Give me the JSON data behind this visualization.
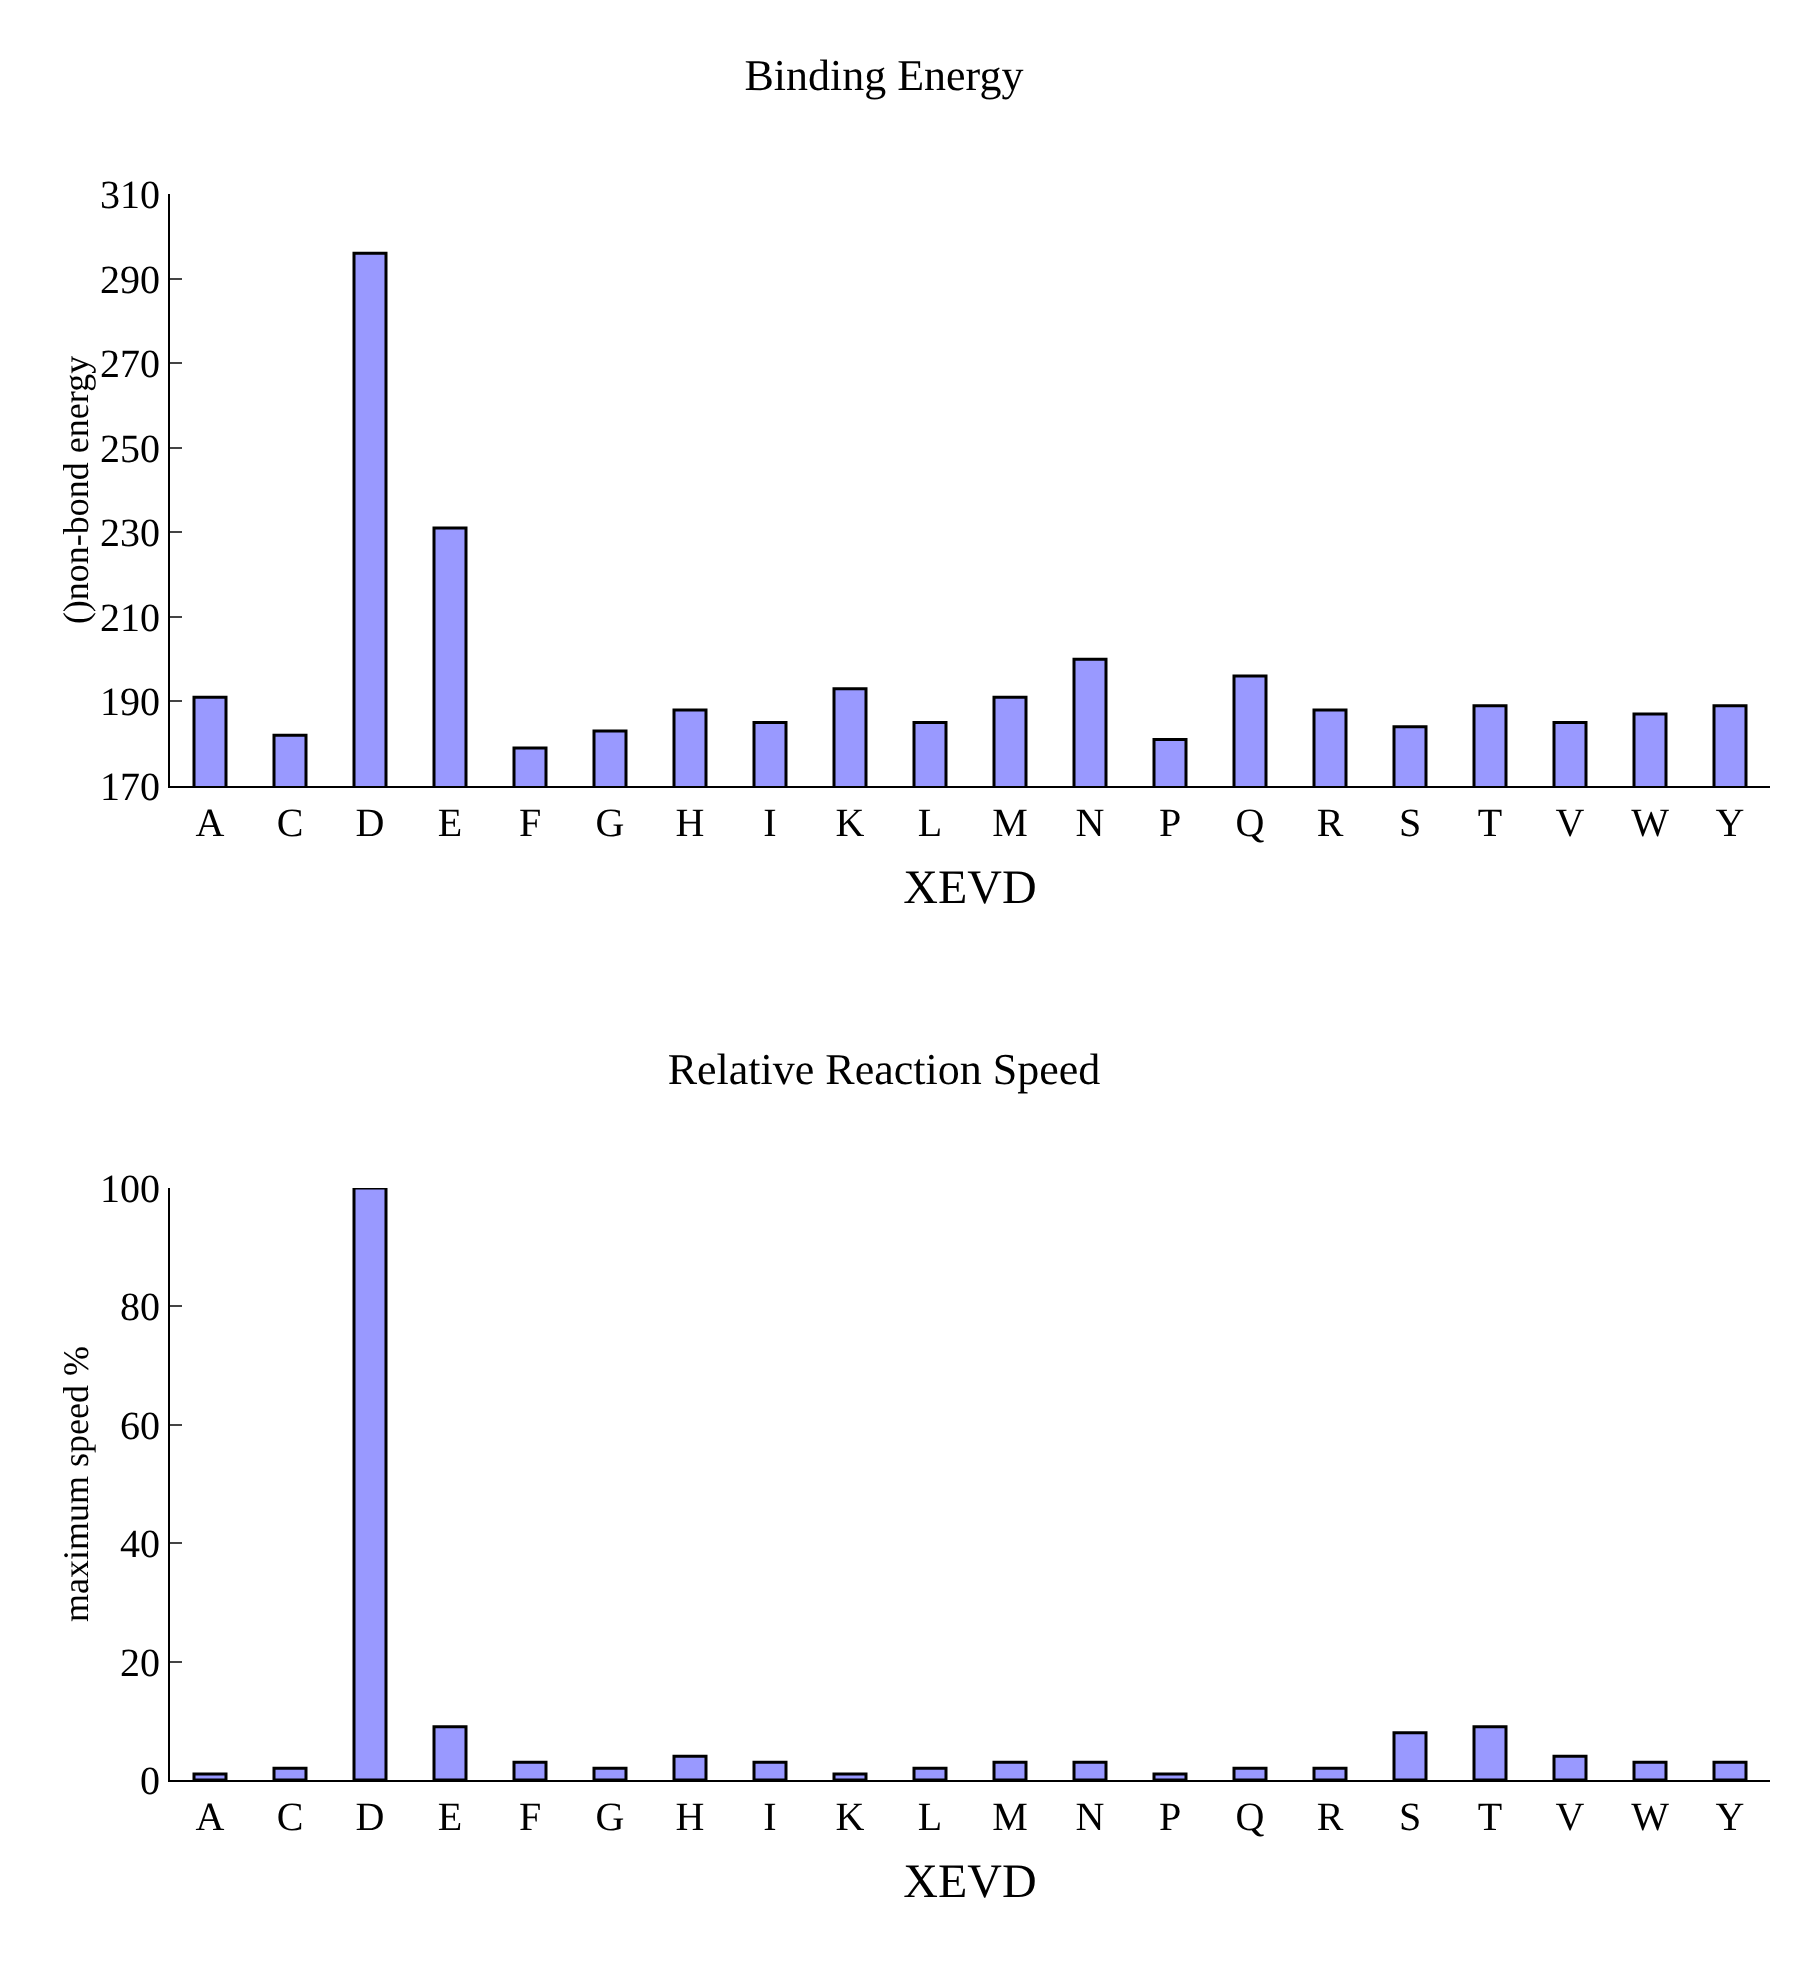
{
  "chart_data": [
    {
      "type": "bar",
      "title": "Binding Energy",
      "xlabel": "XEVD",
      "ylabel": "()non-bond energy",
      "categories": [
        "A",
        "C",
        "D",
        "E",
        "F",
        "G",
        "H",
        "I",
        "K",
        "L",
        "M",
        "N",
        "P",
        "Q",
        "R",
        "S",
        "T",
        "V",
        "W",
        "Y"
      ],
      "color": "#9999ff",
      "values": [
        191,
        182,
        296,
        231,
        179,
        183,
        188,
        185,
        193,
        185,
        191,
        200,
        181,
        196,
        188,
        184,
        189,
        185,
        187,
        189
      ],
      "ylim": [
        170,
        310
      ],
      "yticks": [
        170,
        190,
        210,
        230,
        250,
        270,
        290,
        310
      ],
      "grid": false,
      "legend": false
    },
    {
      "type": "bar",
      "title": "Relative Reaction Speed",
      "xlabel": "XEVD",
      "ylabel": "maximum speed %",
      "categories": [
        "A",
        "C",
        "D",
        "E",
        "F",
        "G",
        "H",
        "I",
        "K",
        "L",
        "M",
        "N",
        "P",
        "Q",
        "R",
        "S",
        "T",
        "V",
        "W",
        "Y"
      ],
      "color": "#9999ff",
      "values": [
        1,
        2,
        100,
        9,
        3,
        2,
        4,
        3,
        1,
        2,
        3,
        3,
        1,
        2,
        2,
        8,
        9,
        4,
        3,
        3
      ],
      "ylim": [
        0,
        100
      ],
      "yticks": [
        0,
        20,
        40,
        60,
        80,
        100
      ],
      "grid": false,
      "legend": false
    }
  ]
}
